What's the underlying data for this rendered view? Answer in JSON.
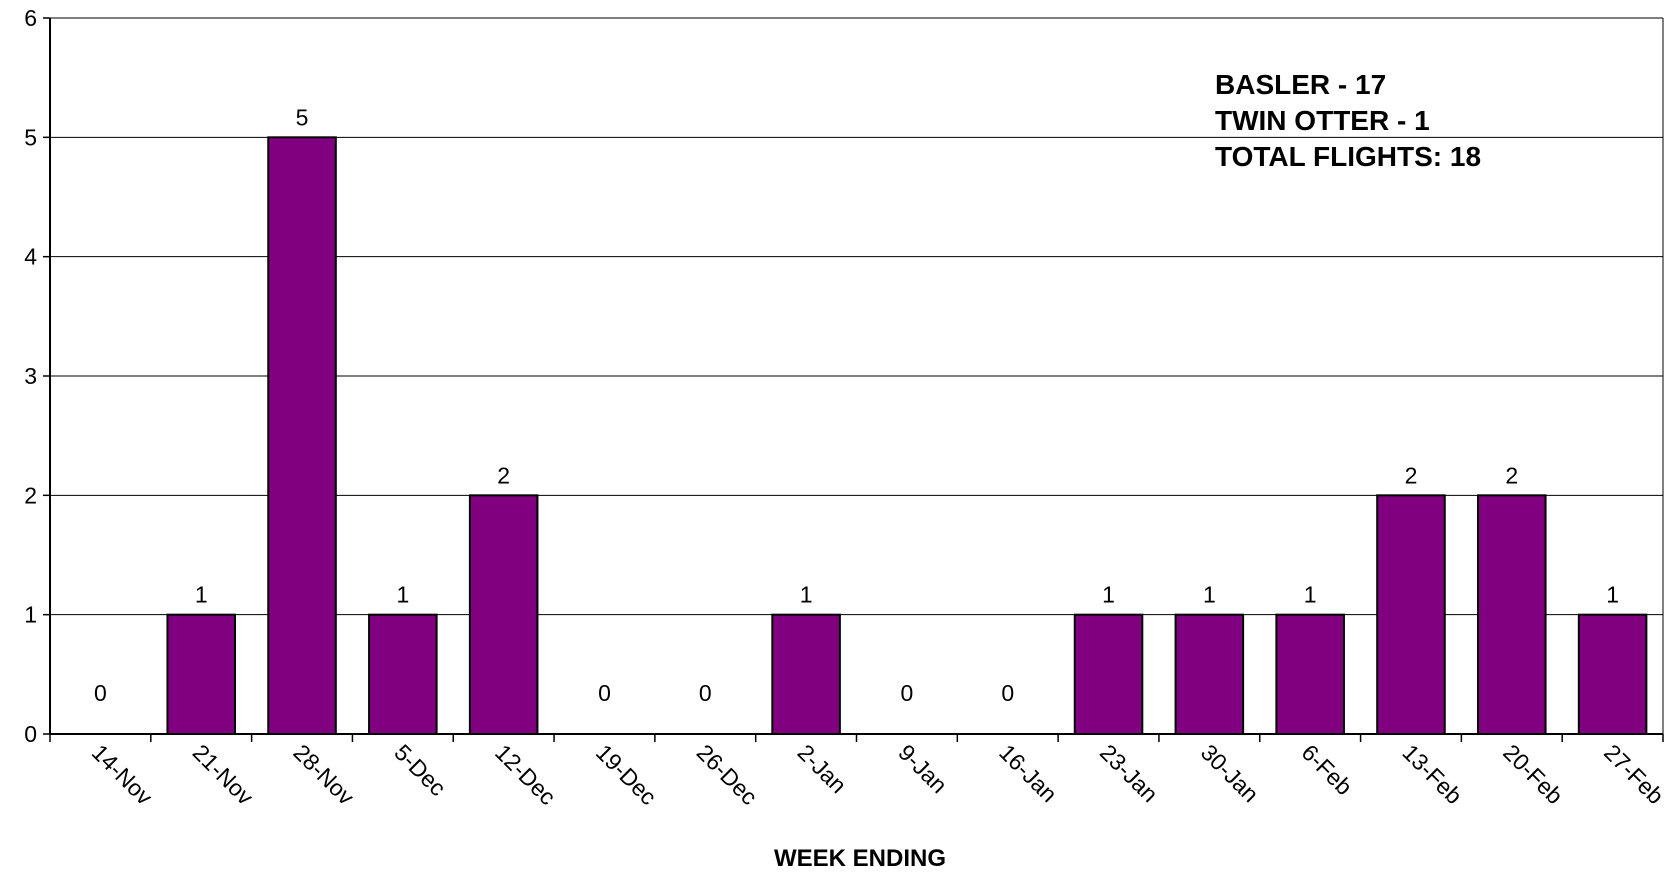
{
  "chart_data": {
    "type": "bar",
    "categories": [
      "14-Nov",
      "21-Nov",
      "28-Nov",
      "5-Dec",
      "12-Dec",
      "19-Dec",
      "26-Dec",
      "2-Jan",
      "9-Jan",
      "16-Jan",
      "23-Jan",
      "30-Jan",
      "6-Feb",
      "13-Feb",
      "20-Feb",
      "27-Feb"
    ],
    "values": [
      0,
      1,
      5,
      1,
      2,
      0,
      0,
      1,
      0,
      0,
      1,
      1,
      1,
      2,
      2,
      1
    ],
    "data_labels": [
      "0",
      "1",
      "5",
      "1",
      "2",
      "0",
      "0",
      "1",
      "0",
      "0",
      "1",
      "1",
      "1",
      "2",
      "2",
      "1"
    ],
    "title": "",
    "xlabel": "WEEK ENDING",
    "ylabel": "",
    "ylim": [
      0,
      6
    ],
    "yticks": [
      "0",
      "1",
      "2",
      "3",
      "4",
      "5",
      "6"
    ],
    "grid": true,
    "legend": false,
    "bar_color": "#800080",
    "annotations": [
      "BASLER - 17",
      "TWIN OTTER - 1",
      "TOTAL FLIGHTS:  18"
    ]
  }
}
